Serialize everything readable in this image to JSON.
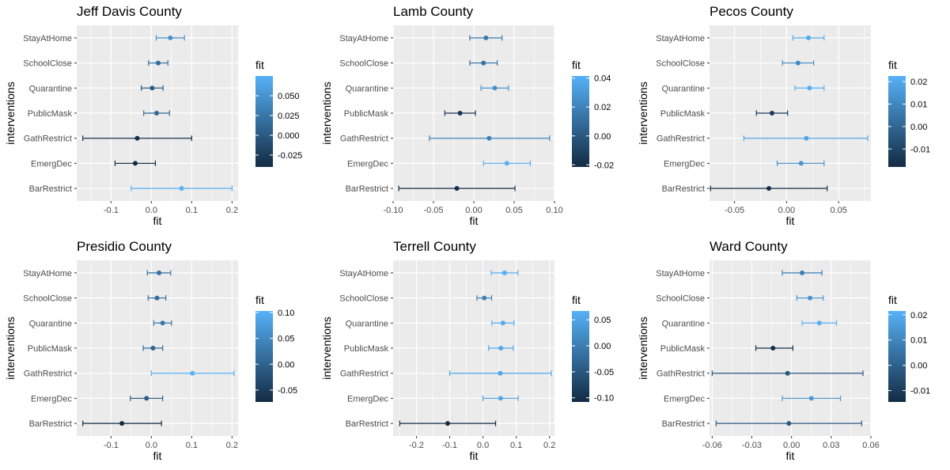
{
  "chart_data": [
    {
      "type": "scatter",
      "title": "Jeff Davis County",
      "xlabel": "fit",
      "ylabel": "interventions",
      "categories": [
        "StayAtHome",
        "SchoolClose",
        "Quarantine",
        "PublicMask",
        "GathRestrict",
        "EmergDec",
        "BarRestrict"
      ],
      "values": [
        0.047,
        0.017,
        0.002,
        0.013,
        -0.035,
        -0.04,
        0.075
      ],
      "lower": [
        0.012,
        -0.007,
        -0.025,
        -0.019,
        -0.17,
        -0.09,
        -0.05
      ],
      "upper": [
        0.082,
        0.041,
        0.029,
        0.045,
        0.1,
        0.01,
        0.2
      ],
      "xlim": [
        -0.185,
        0.215
      ],
      "xticks": [
        -0.1,
        0.0,
        0.1,
        0.2
      ],
      "xtick_labels": [
        "-0.1",
        "0.0",
        "0.1",
        "0.2"
      ],
      "grid": true,
      "legend": {
        "title": "fit",
        "position": "right",
        "ticks": [
          0.05,
          0.025,
          0.0,
          -0.025
        ],
        "tick_labels": [
          "0.050",
          "0.025",
          "0.000",
          "-0.025"
        ],
        "range": [
          -0.04,
          0.075
        ]
      }
    },
    {
      "type": "scatter",
      "title": "Lamb County",
      "xlabel": "fit",
      "ylabel": "interventions",
      "categories": [
        "StayAtHome",
        "SchoolClose",
        "Quarantine",
        "PublicMask",
        "GathRestrict",
        "EmergDec",
        "BarRestrict"
      ],
      "values": [
        0.015,
        0.012,
        0.026,
        -0.017,
        0.019,
        0.041,
        -0.021
      ],
      "lower": [
        -0.005,
        -0.005,
        0.009,
        -0.036,
        -0.055,
        0.012,
        -0.093
      ],
      "upper": [
        0.035,
        0.029,
        0.043,
        0.002,
        0.094,
        0.07,
        0.051
      ],
      "xlim": [
        -0.1,
        0.1
      ],
      "xticks": [
        -0.1,
        -0.05,
        0.0,
        0.05,
        0.1
      ],
      "xtick_labels": [
        "-0.10",
        "-0.05",
        "0.00",
        "0.05",
        "0.10"
      ],
      "grid": true,
      "legend": {
        "title": "fit",
        "position": "right",
        "ticks": [
          0.04,
          0.02,
          0.0,
          -0.02
        ],
        "tick_labels": [
          "0.04",
          "0.02",
          "0.00",
          "-0.02"
        ],
        "range": [
          -0.0215,
          0.0415
        ]
      }
    },
    {
      "type": "scatter",
      "title": "Pecos County",
      "xlabel": "fit",
      "ylabel": "interventions",
      "categories": [
        "StayAtHome",
        "SchoolClose",
        "Quarantine",
        "PublicMask",
        "GathRestrict",
        "EmergDec",
        "BarRestrict"
      ],
      "values": [
        0.021,
        0.011,
        0.022,
        -0.014,
        0.019,
        0.014,
        -0.017
      ],
      "lower": [
        0.006,
        -0.004,
        0.008,
        -0.029,
        -0.041,
        -0.009,
        -0.073
      ],
      "upper": [
        0.036,
        0.026,
        0.036,
        0.001,
        0.078,
        0.036,
        0.039
      ],
      "xlim": [
        -0.074,
        0.081
      ],
      "xticks": [
        -0.05,
        0.0,
        0.05
      ],
      "xtick_labels": [
        "-0.05",
        "0.00",
        "0.05"
      ],
      "grid": true,
      "legend": {
        "title": "fit",
        "position": "right",
        "ticks": [
          0.02,
          0.01,
          0.0,
          -0.01
        ],
        "tick_labels": [
          "0.02",
          "0.01",
          "0.00",
          "-0.01"
        ],
        "range": [
          -0.018,
          0.0225
        ]
      }
    },
    {
      "type": "scatter",
      "title": "Presidio County",
      "xlabel": "fit",
      "ylabel": "interventions",
      "categories": [
        "StayAtHome",
        "SchoolClose",
        "Quarantine",
        "PublicMask",
        "GathRestrict",
        "EmergDec",
        "BarRestrict"
      ],
      "values": [
        0.019,
        0.014,
        0.028,
        0.004,
        0.102,
        -0.012,
        -0.073
      ],
      "lower": [
        -0.01,
        -0.008,
        0.006,
        -0.02,
        0.0,
        -0.052,
        -0.17
      ],
      "upper": [
        0.048,
        0.036,
        0.05,
        0.028,
        0.205,
        0.028,
        0.025
      ],
      "xlim": [
        -0.185,
        0.215
      ],
      "xticks": [
        -0.1,
        0.0,
        0.1,
        0.2
      ],
      "xtick_labels": [
        "-0.1",
        "0.0",
        "0.1",
        "0.2"
      ],
      "grid": true,
      "legend": {
        "title": "fit",
        "position": "right",
        "ticks": [
          0.1,
          0.05,
          0.0,
          -0.05
        ],
        "tick_labels": [
          "0.10",
          "0.05",
          "0.00",
          "-0.05"
        ],
        "range": [
          -0.073,
          0.103
        ]
      }
    },
    {
      "type": "scatter",
      "title": "Terrell County",
      "xlabel": "fit",
      "ylabel": "interventions",
      "categories": [
        "StayAtHome",
        "SchoolClose",
        "Quarantine",
        "PublicMask",
        "GathRestrict",
        "EmergDec",
        "BarRestrict"
      ],
      "values": [
        0.065,
        0.004,
        0.06,
        0.054,
        0.052,
        0.053,
        -0.106
      ],
      "lower": [
        0.025,
        -0.018,
        0.027,
        0.017,
        -0.1,
        0.0,
        -0.25
      ],
      "upper": [
        0.105,
        0.026,
        0.093,
        0.091,
        0.205,
        0.106,
        0.038
      ],
      "xlim": [
        -0.27,
        0.215
      ],
      "xticks": [
        -0.2,
        -0.1,
        0.0,
        0.1,
        0.2
      ],
      "xtick_labels": [
        "-0.2",
        "-0.1",
        "0.0",
        "0.1",
        "0.2"
      ],
      "grid": true,
      "legend": {
        "title": "fit",
        "position": "right",
        "ticks": [
          0.05,
          0.0,
          -0.05,
          -0.1
        ],
        "tick_labels": [
          "0.05",
          "0.00",
          "-0.05",
          "-0.10"
        ],
        "range": [
          -0.108,
          0.067
        ]
      }
    },
    {
      "type": "scatter",
      "title": "Ward County",
      "xlabel": "fit",
      "ylabel": "interventions",
      "categories": [
        "StayAtHome",
        "SchoolClose",
        "Quarantine",
        "PublicMask",
        "GathRestrict",
        "EmergDec",
        "BarRestrict"
      ],
      "values": [
        0.008,
        0.014,
        0.021,
        -0.014,
        -0.003,
        0.015,
        -0.002
      ],
      "lower": [
        -0.007,
        0.004,
        0.008,
        -0.027,
        -0.06,
        -0.007,
        -0.057
      ],
      "upper": [
        0.023,
        0.024,
        0.034,
        0.001,
        0.054,
        0.037,
        0.053
      ],
      "xlim": [
        -0.062,
        0.06
      ],
      "xticks": [
        -0.06,
        -0.03,
        0.0,
        0.03,
        0.06
      ],
      "xtick_labels": [
        "-0.06",
        "-0.03",
        "0.00",
        "0.03",
        "0.06"
      ],
      "grid": true,
      "legend": {
        "title": "fit",
        "position": "right",
        "ticks": [
          0.02,
          0.01,
          0.0,
          -0.01
        ],
        "tick_labels": [
          "0.02",
          "0.01",
          "0.00",
          "-0.01"
        ],
        "range": [
          -0.0145,
          0.0215
        ]
      }
    }
  ],
  "colors": {
    "panel_bg": "#ebebeb",
    "grid": "#ffffff",
    "low": "#132b43",
    "high": "#56b1f7"
  }
}
